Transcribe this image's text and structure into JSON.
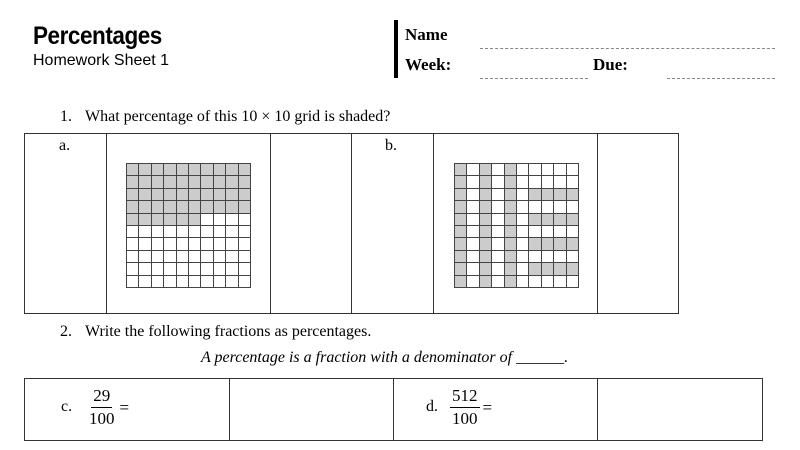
{
  "header": {
    "title": "Percentages",
    "subtitle": "Homework Sheet 1",
    "name_label": "Name",
    "week_label": "Week:",
    "due_label": "Due:"
  },
  "q1": {
    "number": "1.",
    "text": "What percentage of this 10 × 10 grid is shaded?",
    "items": [
      {
        "label": "a.",
        "shaded_color": "#cccccc",
        "grid": [
          "1111111111",
          "1111111111",
          "1111111111",
          "1111111111",
          "1111110000",
          "0000000000",
          "0000000000",
          "0000000000",
          "0000000000",
          "0000000000"
        ]
      },
      {
        "label": "b.",
        "shaded_color": "#cccccc",
        "grid": [
          "1010100000",
          "1010100000",
          "1010101111",
          "1010100000",
          "1010101111",
          "1010100000",
          "1010101111",
          "1010100000",
          "1010101111",
          "1010100000"
        ]
      }
    ]
  },
  "q2": {
    "number": "2.",
    "text": "Write the following fractions as percentages.",
    "hint": "A percentage is a fraction with a denominator of ______.",
    "items": [
      {
        "label": "c.",
        "numerator": "29",
        "denominator": "100",
        "equals": "="
      },
      {
        "label": "d.",
        "numerator": "512",
        "denominator": "100",
        "equals": "="
      }
    ]
  }
}
